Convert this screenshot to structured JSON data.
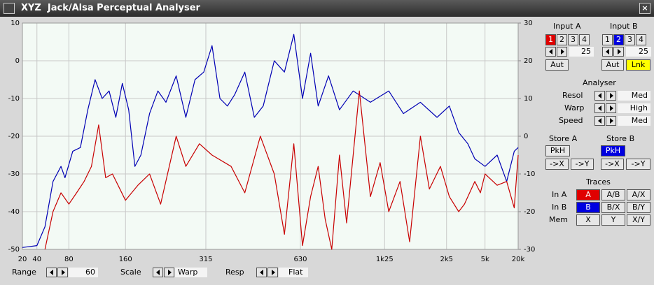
{
  "window": {
    "title": "XYZ  Jack/Alsa Perceptual Analyser"
  },
  "chart_data": {
    "type": "line",
    "xlim": [
      20,
      20000
    ],
    "xticks": [
      20,
      40,
      80,
      160,
      315,
      630,
      {
        "value": 1250,
        "label": "1k25"
      },
      {
        "value": 2500,
        "label": "2k5"
      },
      {
        "value": 5000,
        "label": "5k"
      },
      {
        "value": 20000,
        "label": "20k"
      }
    ],
    "ylim": [
      -50,
      10
    ],
    "yticks": [
      10,
      0,
      -10,
      -20,
      -30,
      -40,
      -50
    ],
    "y2lim": [
      -30,
      30
    ],
    "y2ticks": [
      30,
      20,
      10,
      0,
      -10,
      -20,
      -30
    ],
    "grid": true,
    "series": [
      {
        "color": "#0000b4",
        "x": [
          20,
          40,
          50,
          60,
          70,
          75,
          85,
          95,
          105,
          115,
          125,
          135,
          145,
          155,
          165,
          175,
          185,
          200,
          215,
          230,
          250,
          270,
          290,
          310,
          330,
          350,
          370,
          390,
          420,
          450,
          480,
          520,
          560,
          600,
          640,
          680,
          720,
          780,
          850,
          950,
          1100,
          1300,
          1500,
          1800,
          2200,
          2600,
          3000,
          3500,
          4000,
          5000,
          7000,
          10000,
          15000,
          20000
        ],
        "values": [
          -49.5,
          -49,
          -44,
          -32,
          -28,
          -31,
          -24,
          -23,
          -13,
          -5,
          -10,
          -8,
          -15,
          -6,
          -13,
          -28,
          -25,
          -14,
          -8,
          -11,
          -4,
          -15,
          -5,
          -3,
          4,
          -10,
          -12,
          -9,
          -3,
          -15,
          -12,
          0,
          -3,
          7,
          -10,
          2,
          -12,
          -4,
          -13,
          -8,
          -11,
          -8,
          -14,
          -11,
          -15,
          -12,
          -19,
          -22,
          -26,
          -28,
          -25,
          -32,
          -24,
          -23
        ]
      },
      {
        "color": "#c80000",
        "x": [
          50,
          60,
          70,
          80,
          90,
          100,
          110,
          120,
          130,
          140,
          160,
          180,
          200,
          220,
          250,
          270,
          300,
          330,
          380,
          420,
          470,
          520,
          560,
          600,
          640,
          680,
          720,
          760,
          800,
          850,
          900,
          1000,
          1100,
          1200,
          1300,
          1450,
          1600,
          1800,
          2000,
          2300,
          2600,
          3000,
          3300,
          4000,
          4500,
          5000,
          7000,
          10000,
          15000,
          20000
        ],
        "values": [
          -50,
          -40,
          -35,
          -38,
          -35,
          -32,
          -28,
          -17,
          -31,
          -30,
          -37,
          -33,
          -30,
          -38,
          -20,
          -28,
          -22,
          -25,
          -28,
          -35,
          -20,
          -30,
          -46,
          -22,
          -49,
          -36,
          -28,
          -42,
          -50,
          -25,
          -43,
          -8,
          -36,
          -27,
          -40,
          -32,
          -48,
          -20,
          -34,
          -28,
          -36,
          -40,
          -38,
          -32,
          -35,
          -30,
          -33,
          -32,
          -39,
          -25
        ]
      }
    ]
  },
  "panel": {
    "input_a": {
      "label": "Input A",
      "channels": [
        "1",
        "2",
        "3",
        "4"
      ],
      "value": 25,
      "auto": "Aut"
    },
    "input_b": {
      "label": "Input B",
      "channels": [
        "1",
        "2",
        "3",
        "4"
      ],
      "value": 25,
      "auto": "Aut",
      "link": "Lnk"
    },
    "analyser": {
      "label": "Analyser",
      "rows": [
        [
          "Resol",
          "Med"
        ],
        [
          "Warp",
          "High"
        ],
        [
          "Speed",
          "Med"
        ]
      ]
    },
    "store_a": {
      "label": "Store A",
      "hold": "PkH",
      "to_x": "->X",
      "to_y": "->Y"
    },
    "store_b": {
      "label": "Store B",
      "hold": "PkH",
      "to_x": "->X",
      "to_y": "->Y"
    },
    "traces": {
      "label": "Traces",
      "rows": [
        [
          "In A",
          "A",
          "A/B",
          "A/X"
        ],
        [
          "In B",
          "B",
          "B/X",
          "B/Y"
        ],
        [
          "Mem",
          "X",
          "Y",
          "X/Y"
        ]
      ]
    }
  },
  "bottom": {
    "range": {
      "label": "Range",
      "value": 60
    },
    "scale": {
      "label": "Scale",
      "value": "Warp"
    },
    "resp": {
      "label": "Resp",
      "value": "Flat"
    }
  }
}
